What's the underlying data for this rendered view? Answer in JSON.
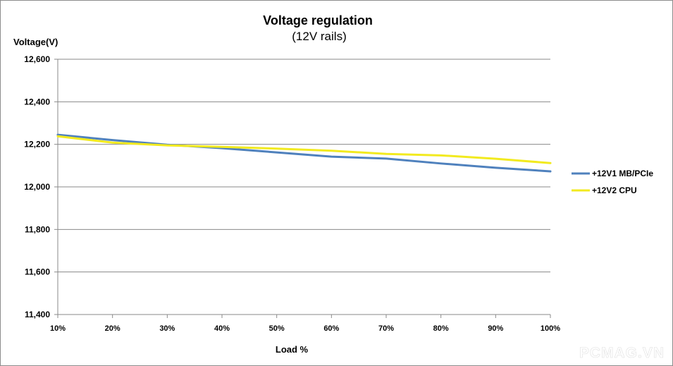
{
  "chart_data": {
    "type": "line",
    "title": "Voltage regulation",
    "subtitle": "(12V rails)",
    "ylabel": "Voltage(V)",
    "xlabel": "Load %",
    "categories": [
      "10%",
      "20%",
      "30%",
      "40%",
      "50%",
      "60%",
      "70%",
      "80%",
      "90%",
      "100%"
    ],
    "ylim": [
      11400,
      12600
    ],
    "yticks": [
      12600,
      12400,
      12200,
      12000,
      11800,
      11600,
      11400
    ],
    "ytick_labels": [
      "12,600",
      "12,400",
      "12,200",
      "12,000",
      "11,800",
      "11,600",
      "11,400"
    ],
    "grid": true,
    "legend_position": "right",
    "series": [
      {
        "name": "+12V1 MB/PCIe",
        "color": "#4f81bd",
        "values": [
          12245,
          12220,
          12198,
          12182,
          12162,
          12142,
          12133,
          12110,
          12090,
          12073
        ]
      },
      {
        "name": "+12V2 CPU",
        "color": "#f2ea1f",
        "values": [
          12238,
          12208,
          12195,
          12188,
          12180,
          12170,
          12155,
          12148,
          12132,
          12112
        ]
      }
    ]
  },
  "watermark": "PCMAG.VN"
}
